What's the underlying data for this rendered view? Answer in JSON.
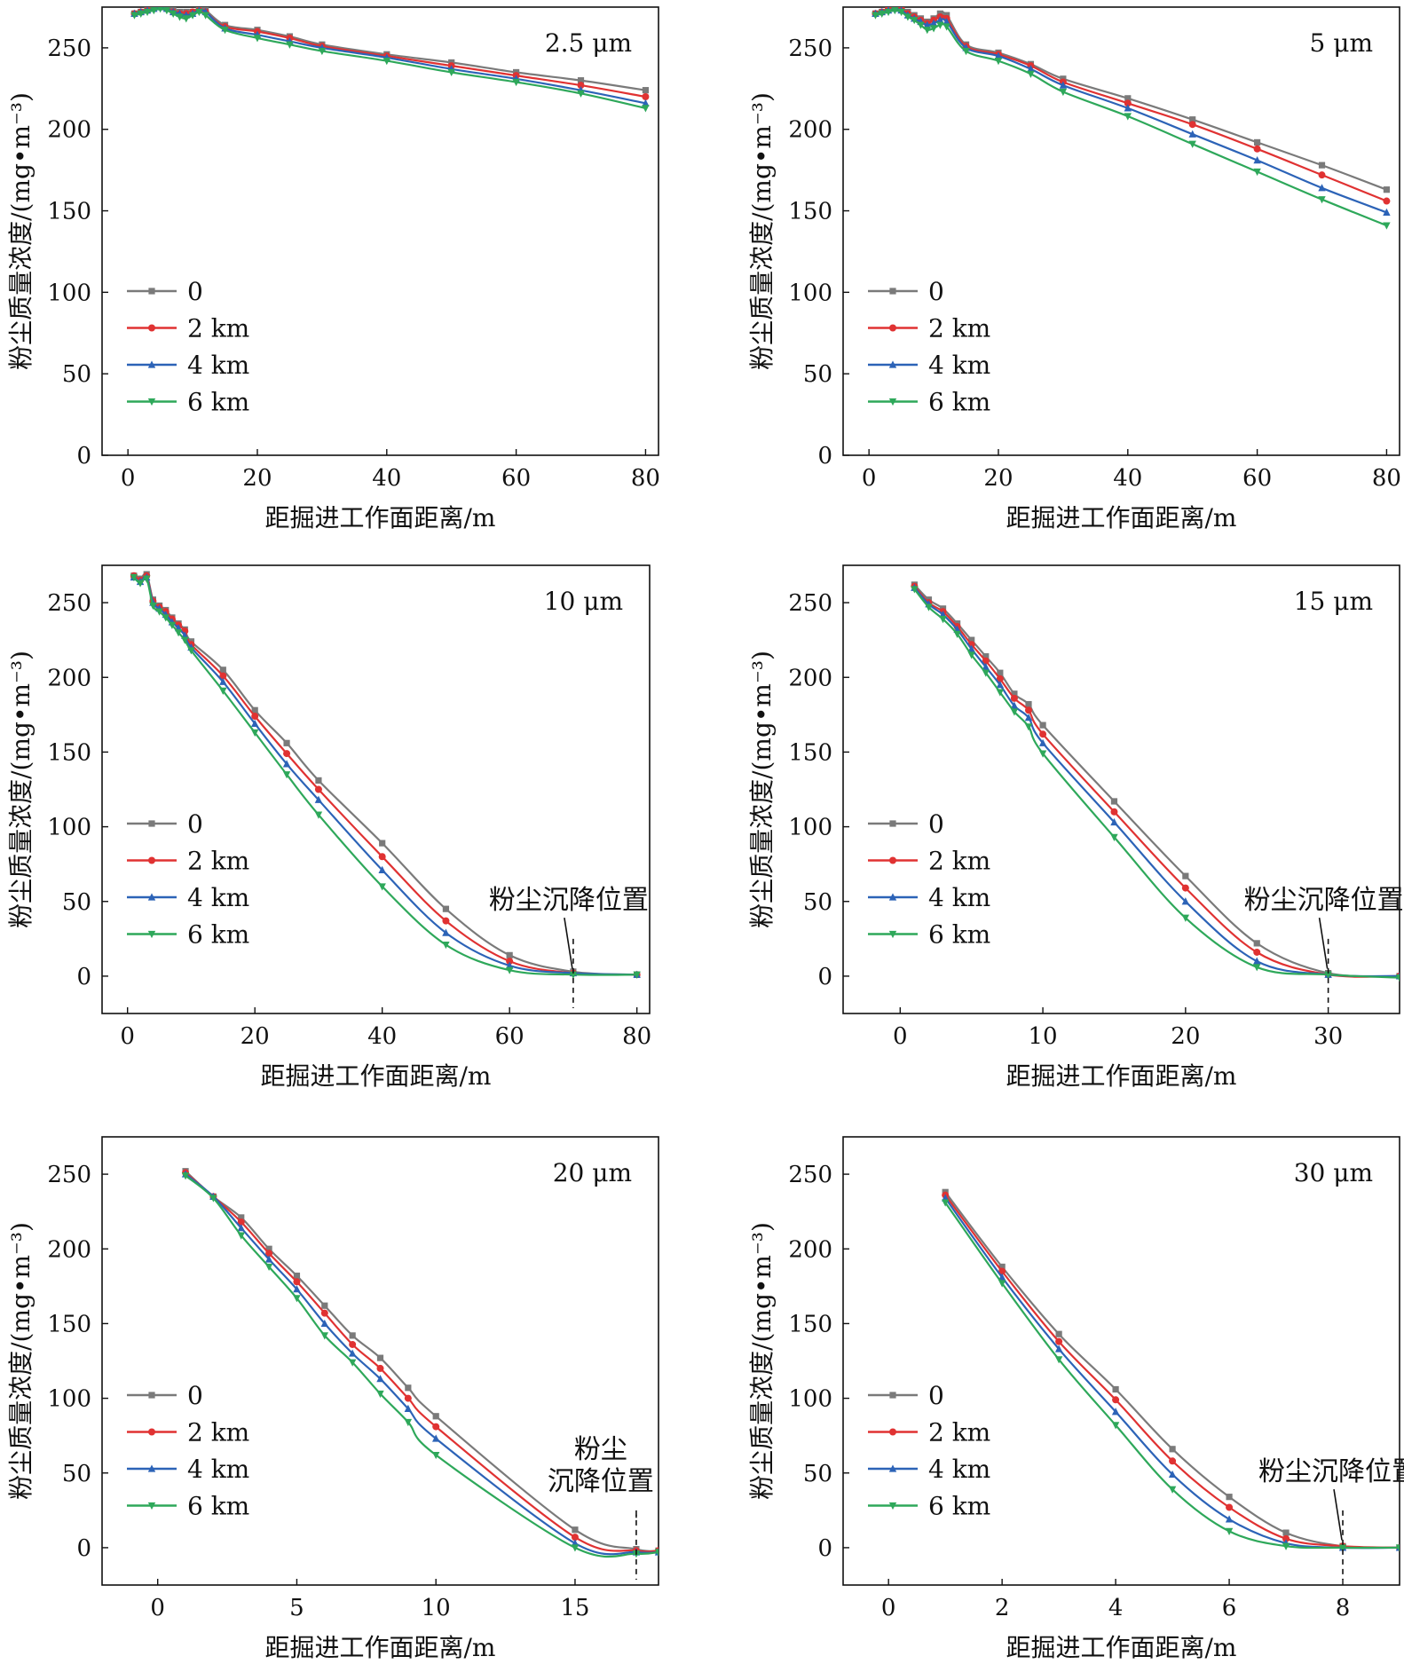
{
  "colors": {
    "0": "#7a7a7a",
    "2 km": "#e03232",
    "4 km": "#2c63b7",
    "6 km": "#2ea85a",
    "axis": "#111111"
  },
  "chart_data": [
    {
      "type": "line",
      "panel_label": "2.5 μm",
      "xlabel": "距掘进工作面距离/m",
      "ylabel": "粉尘质量浓度/(mg•m⁻³)",
      "xlim": [
        -4,
        82
      ],
      "ylim": [
        0,
        275
      ],
      "xticks": [
        0,
        20,
        40,
        60,
        80
      ],
      "yticks": [
        0,
        50,
        100,
        150,
        200,
        250
      ],
      "legend_position": "left",
      "x": [
        1,
        2,
        3,
        4,
        5,
        6,
        7,
        8,
        9,
        10,
        11,
        12,
        15,
        20,
        25,
        30,
        40,
        50,
        60,
        70,
        80
      ],
      "series": [
        {
          "name": "0",
          "marker": "square",
          "values": [
            271,
            272,
            273,
            275,
            276,
            275,
            273,
            272,
            272,
            272,
            274,
            273,
            264,
            261,
            257,
            252,
            246,
            241,
            235,
            230,
            224
          ]
        },
        {
          "name": "2 km",
          "marker": "circle",
          "values": [
            271,
            272,
            273,
            275,
            276,
            274,
            272,
            271,
            271,
            272,
            273,
            272,
            263,
            260,
            256,
            251,
            245,
            239,
            233,
            227,
            220
          ]
        },
        {
          "name": "4 km",
          "marker": "triangle-up",
          "values": [
            271,
            272,
            273,
            274,
            275,
            274,
            272,
            271,
            270,
            271,
            273,
            272,
            262,
            258,
            254,
            250,
            244,
            237,
            231,
            224,
            216
          ]
        },
        {
          "name": "6 km",
          "marker": "triangle-down",
          "values": [
            270,
            271,
            272,
            273,
            274,
            273,
            271,
            269,
            268,
            270,
            272,
            270,
            261,
            256,
            252,
            248,
            242,
            235,
            229,
            222,
            213
          ]
        }
      ]
    },
    {
      "type": "line",
      "panel_label": "5 μm",
      "xlabel": "距掘进工作面距离/m",
      "ylabel": "粉尘质量浓度/(mg•m⁻³)",
      "xlim": [
        -4,
        82
      ],
      "ylim": [
        0,
        275
      ],
      "xticks": [
        0,
        20,
        40,
        60,
        80
      ],
      "yticks": [
        0,
        50,
        100,
        150,
        200,
        250
      ],
      "legend_position": "left",
      "x": [
        1,
        2,
        3,
        4,
        5,
        6,
        7,
        8,
        9,
        10,
        11,
        12,
        15,
        20,
        25,
        30,
        40,
        50,
        60,
        70,
        80
      ],
      "series": [
        {
          "name": "0",
          "marker": "square",
          "values": [
            271,
            272,
            274,
            275,
            274,
            272,
            270,
            268,
            266,
            268,
            271,
            270,
            252,
            247,
            240,
            231,
            219,
            206,
            192,
            178,
            163
          ]
        },
        {
          "name": "2 km",
          "marker": "circle",
          "values": [
            271,
            272,
            274,
            275,
            274,
            271,
            269,
            267,
            265,
            267,
            269,
            268,
            251,
            246,
            239,
            229,
            216,
            203,
            188,
            172,
            156
          ]
        },
        {
          "name": "4 km",
          "marker": "triangle-up",
          "values": [
            271,
            272,
            273,
            274,
            273,
            270,
            268,
            266,
            264,
            265,
            267,
            266,
            250,
            245,
            237,
            227,
            213,
            197,
            181,
            164,
            149
          ]
        },
        {
          "name": "6 km",
          "marker": "triangle-down",
          "values": [
            270,
            271,
            272,
            273,
            272,
            269,
            267,
            264,
            261,
            262,
            264,
            263,
            248,
            242,
            234,
            223,
            208,
            191,
            174,
            157,
            141
          ]
        }
      ]
    },
    {
      "type": "line",
      "panel_label": "10 μm",
      "xlabel": "距掘进工作面距离/m",
      "ylabel": "粉尘质量浓度/(mg•m⁻³)",
      "xlim": [
        -4,
        82
      ],
      "ylim": [
        -25,
        275
      ],
      "xticks": [
        0,
        20,
        40,
        60,
        80
      ],
      "yticks": [
        0,
        50,
        100,
        150,
        200,
        250
      ],
      "legend_position": "left",
      "annotation": {
        "text": "粉尘沉降位置",
        "x": 70
      },
      "x": [
        1,
        2,
        3,
        4,
        5,
        6,
        7,
        8,
        9,
        10,
        15,
        20,
        25,
        30,
        40,
        50,
        60,
        70,
        80
      ],
      "series": [
        {
          "name": "0",
          "marker": "square",
          "values": [
            268,
            266,
            269,
            252,
            248,
            245,
            240,
            236,
            232,
            224,
            205,
            178,
            156,
            131,
            89,
            45,
            14,
            3,
            1
          ]
        },
        {
          "name": "2 km",
          "marker": "circle",
          "values": [
            268,
            265,
            268,
            251,
            247,
            244,
            239,
            235,
            231,
            222,
            201,
            174,
            149,
            125,
            80,
            37,
            10,
            2,
            1
          ]
        },
        {
          "name": "4 km",
          "marker": "triangle-up",
          "values": [
            267,
            264,
            267,
            250,
            246,
            242,
            237,
            233,
            228,
            220,
            197,
            169,
            142,
            118,
            71,
            29,
            7,
            2,
            1
          ]
        },
        {
          "name": "6 km",
          "marker": "triangle-down",
          "values": [
            267,
            263,
            266,
            248,
            244,
            240,
            235,
            230,
            225,
            218,
            191,
            163,
            135,
            108,
            60,
            21,
            4,
            1,
            1
          ]
        }
      ]
    },
    {
      "type": "line",
      "panel_label": "15 μm",
      "xlabel": "距掘进工作面距离/m",
      "ylabel": "粉尘质量浓度/(mg•m⁻³)",
      "xlim": [
        -4,
        35
      ],
      "ylim": [
        -25,
        275
      ],
      "xticks": [
        0,
        10,
        20,
        30
      ],
      "yticks": [
        0,
        50,
        100,
        150,
        200,
        250
      ],
      "legend_position": "left",
      "annotation": {
        "text": "粉尘沉降位置",
        "x": 30
      },
      "x": [
        1,
        2,
        3,
        4,
        5,
        6,
        7,
        8,
        9,
        10,
        15,
        20,
        25,
        30,
        35
      ],
      "series": [
        {
          "name": "0",
          "marker": "square",
          "values": [
            262,
            252,
            246,
            236,
            225,
            214,
            203,
            189,
            182,
            168,
            117,
            67,
            22,
            2,
            0
          ]
        },
        {
          "name": "2 km",
          "marker": "circle",
          "values": [
            261,
            250,
            244,
            234,
            222,
            211,
            199,
            186,
            178,
            162,
            110,
            59,
            16,
            1,
            0
          ]
        },
        {
          "name": "4 km",
          "marker": "triangle-up",
          "values": [
            260,
            249,
            242,
            232,
            219,
            207,
            195,
            181,
            173,
            156,
            103,
            50,
            10,
            1,
            0
          ]
        },
        {
          "name": "6 km",
          "marker": "triangle-down",
          "values": [
            259,
            247,
            239,
            229,
            215,
            203,
            190,
            177,
            167,
            149,
            93,
            39,
            6,
            1,
            -1
          ]
        }
      ]
    },
    {
      "type": "line",
      "panel_label": "20 μm",
      "xlabel": "距掘进工作面距离/m",
      "ylabel": "粉尘质量浓度/(mg•m⁻³)",
      "xlim": [
        -2,
        18
      ],
      "ylim": [
        -25,
        275
      ],
      "xticks": [
        0,
        5,
        10,
        15
      ],
      "yticks": [
        0,
        50,
        100,
        150,
        200,
        250
      ],
      "legend_position": "left",
      "annotation": {
        "text": "粉尘沉降位置",
        "x": 17.2
      },
      "x": [
        1,
        2,
        3,
        4,
        5,
        6,
        7,
        8,
        9,
        10,
        15,
        17.2,
        18
      ],
      "series": [
        {
          "name": "0",
          "marker": "square",
          "values": [
            252,
            235,
            221,
            200,
            182,
            162,
            142,
            127,
            107,
            88,
            12,
            -1,
            -2
          ]
        },
        {
          "name": "2 km",
          "marker": "circle",
          "values": [
            251,
            235,
            218,
            197,
            178,
            157,
            136,
            120,
            100,
            81,
            7,
            -2,
            -2
          ]
        },
        {
          "name": "4 km",
          "marker": "triangle-up",
          "values": [
            250,
            235,
            214,
            193,
            173,
            150,
            130,
            113,
            93,
            73,
            3,
            -3,
            -3
          ]
        },
        {
          "name": "6 km",
          "marker": "triangle-down",
          "values": [
            249,
            234,
            209,
            188,
            167,
            142,
            124,
            103,
            84,
            62,
            0,
            -4,
            -3
          ]
        }
      ]
    },
    {
      "type": "line",
      "panel_label": "30 μm",
      "xlabel": "距掘进工作面距离/m",
      "ylabel": "粉尘质量浓度/(mg•m⁻³)",
      "xlim": [
        -0.8,
        9
      ],
      "ylim": [
        -25,
        275
      ],
      "xticks": [
        0,
        2,
        4,
        6,
        8
      ],
      "yticks": [
        0,
        50,
        100,
        150,
        200,
        250
      ],
      "legend_position": "left",
      "annotation": {
        "text": "粉尘沉降位置",
        "x": 8
      },
      "x": [
        1,
        2,
        3,
        4,
        5,
        6,
        7,
        8,
        9
      ],
      "series": [
        {
          "name": "0",
          "marker": "square",
          "values": [
            238,
            188,
            143,
            106,
            66,
            34,
            10,
            1,
            0
          ]
        },
        {
          "name": "2 km",
          "marker": "circle",
          "values": [
            236,
            185,
            138,
            99,
            58,
            27,
            6,
            1,
            0
          ]
        },
        {
          "name": "4 km",
          "marker": "triangle-up",
          "values": [
            234,
            181,
            133,
            91,
            49,
            19,
            3,
            0,
            0
          ]
        },
        {
          "name": "6 km",
          "marker": "triangle-down",
          "values": [
            231,
            177,
            126,
            82,
            39,
            11,
            1,
            0,
            0
          ]
        }
      ]
    }
  ]
}
